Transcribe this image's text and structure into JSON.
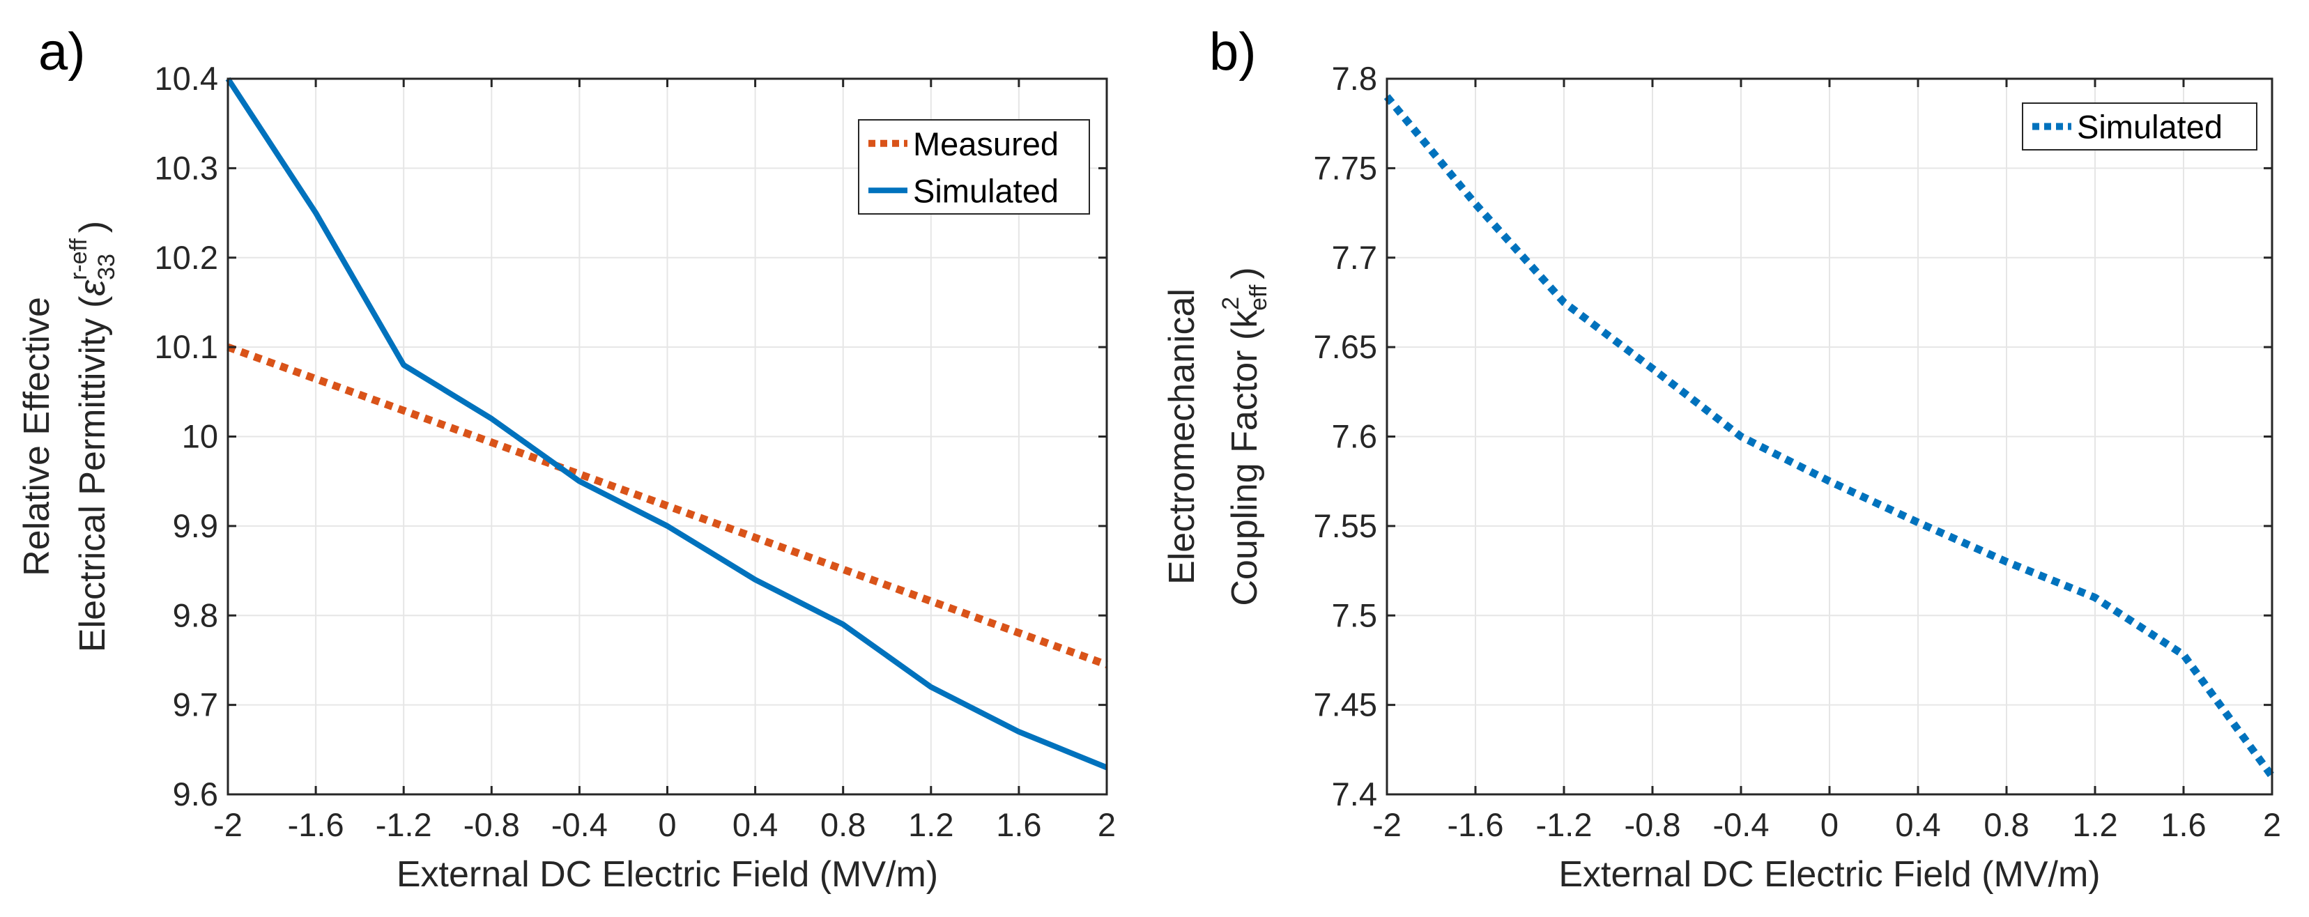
{
  "colors": {
    "measured": "#D95319",
    "simulated": "#0072BD",
    "grid": "#E6E6E6",
    "axis": "#262626"
  },
  "chart_data": [
    {
      "panel_label": "a)",
      "type": "line",
      "title": "",
      "xlabel": "External DC Electric Field (MV/m)",
      "ylabel_line1": "Relative Effective",
      "ylabel_line2_prefix": "Electrical Permittivity (",
      "ylabel_symbol": "ε",
      "ylabel_sup": "r-eff",
      "ylabel_sub": "33",
      "ylabel_suffix": ")",
      "xlim": [
        -2,
        2
      ],
      "ylim": [
        9.6,
        10.4
      ],
      "xticks": [
        -2,
        -1.6,
        -1.2,
        -0.8,
        -0.4,
        0,
        0.4,
        0.8,
        1.2,
        1.6,
        2
      ],
      "xtick_labels": [
        "-2",
        "-1.6",
        "-1.2",
        "-0.8",
        "-0.4",
        "0",
        "0.4",
        "0.8",
        "1.2",
        "1.6",
        "2"
      ],
      "yticks": [
        9.6,
        9.7,
        9.8,
        9.9,
        10,
        10.1,
        10.2,
        10.3,
        10.4
      ],
      "ytick_labels": [
        "9.6",
        "9.7",
        "9.8",
        "9.9",
        "10",
        "10.1",
        "10.2",
        "10.3",
        "10.4"
      ],
      "grid": true,
      "legend_position": "top-right",
      "series": [
        {
          "name": "Measured",
          "style": "dotted",
          "color": "#D95319",
          "x": [
            -2,
            2
          ],
          "y": [
            10.1,
            9.745
          ]
        },
        {
          "name": "Simulated",
          "style": "solid",
          "color": "#0072BD",
          "x": [
            -2,
            -1.6,
            -1.2,
            -0.8,
            -0.4,
            0,
            0.4,
            0.8,
            1.2,
            1.6,
            2
          ],
          "y": [
            10.4,
            10.25,
            10.08,
            10.02,
            9.95,
            9.9,
            9.84,
            9.79,
            9.72,
            9.67,
            9.63
          ]
        }
      ]
    },
    {
      "panel_label": "b)",
      "type": "line",
      "title": "",
      "xlabel": "External DC Electric Field (MV/m)",
      "ylabel_line1": "Electromechanical",
      "ylabel_line2_prefix": "Coupling Factor (",
      "ylabel_symbol": "k",
      "ylabel_sup": "2",
      "ylabel_sub": "eff",
      "ylabel_suffix": ")",
      "xlim": [
        -2,
        2
      ],
      "ylim": [
        7.4,
        7.8
      ],
      "xticks": [
        -2,
        -1.6,
        -1.2,
        -0.8,
        -0.4,
        0,
        0.4,
        0.8,
        1.2,
        1.6,
        2
      ],
      "xtick_labels": [
        "-2",
        "-1.6",
        "-1.2",
        "-0.8",
        "-0.4",
        "0",
        "0.4",
        "0.8",
        "1.2",
        "1.6",
        "2"
      ],
      "yticks": [
        7.4,
        7.45,
        7.5,
        7.55,
        7.6,
        7.65,
        7.7,
        7.75,
        7.8
      ],
      "ytick_labels": [
        "7.4",
        "7.45",
        "7.5",
        "7.55",
        "7.6",
        "7.65",
        "7.7",
        "7.75",
        "7.8"
      ],
      "grid": true,
      "legend_position": "top-right",
      "series": [
        {
          "name": "Simulated",
          "style": "dotted",
          "color": "#0072BD",
          "x": [
            -2,
            -1.6,
            -1.2,
            -0.8,
            -0.4,
            0,
            0.4,
            0.8,
            1.2,
            1.6,
            2
          ],
          "y": [
            7.79,
            7.73,
            7.675,
            7.638,
            7.6,
            7.575,
            7.552,
            7.53,
            7.51,
            7.478,
            7.41
          ]
        }
      ]
    }
  ]
}
